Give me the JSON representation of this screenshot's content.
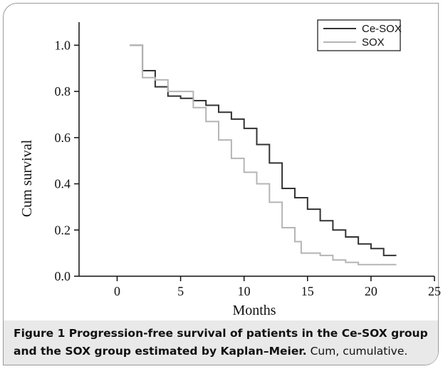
{
  "chart_data": {
    "type": "line",
    "step": true,
    "title": "",
    "xlabel": "Months",
    "ylabel": "Cum survival",
    "xlim": [
      -3,
      25
    ],
    "ylim": [
      0.0,
      1.1
    ],
    "xticks": [
      0,
      5,
      10,
      15,
      20,
      25
    ],
    "yticks": [
      0.0,
      0.2,
      0.4,
      0.6,
      0.8,
      1.0
    ],
    "xtick_labels": [
      "0",
      "5",
      "10",
      "15",
      "20",
      "25"
    ],
    "ytick_labels": [
      "0.0",
      "0.2",
      "0.4",
      "0.6",
      "0.8",
      "1.0"
    ],
    "grid": false,
    "legend_position": "top-right",
    "series": [
      {
        "name": "Ce-SOX",
        "color": "#333333",
        "points": [
          [
            1,
            1.0
          ],
          [
            2,
            1.0
          ],
          [
            2,
            0.89
          ],
          [
            3,
            0.89
          ],
          [
            3,
            0.82
          ],
          [
            4,
            0.82
          ],
          [
            4,
            0.78
          ],
          [
            5,
            0.78
          ],
          [
            5,
            0.77
          ],
          [
            6,
            0.77
          ],
          [
            6,
            0.76
          ],
          [
            7,
            0.76
          ],
          [
            7,
            0.74
          ],
          [
            8,
            0.74
          ],
          [
            8,
            0.71
          ],
          [
            9,
            0.71
          ],
          [
            9,
            0.68
          ],
          [
            10,
            0.68
          ],
          [
            10,
            0.64
          ],
          [
            11,
            0.64
          ],
          [
            11,
            0.57
          ],
          [
            12,
            0.57
          ],
          [
            12,
            0.49
          ],
          [
            13,
            0.49
          ],
          [
            13,
            0.38
          ],
          [
            14,
            0.38
          ],
          [
            14,
            0.34
          ],
          [
            15,
            0.34
          ],
          [
            15,
            0.29
          ],
          [
            16,
            0.29
          ],
          [
            16,
            0.24
          ],
          [
            17,
            0.24
          ],
          [
            17,
            0.2
          ],
          [
            18,
            0.2
          ],
          [
            18,
            0.17
          ],
          [
            19,
            0.17
          ],
          [
            19,
            0.14
          ],
          [
            20,
            0.14
          ],
          [
            20,
            0.12
          ],
          [
            21,
            0.12
          ],
          [
            21,
            0.09
          ],
          [
            22,
            0.09
          ]
        ]
      },
      {
        "name": "SOX",
        "color": "#b5b5b5",
        "points": [
          [
            1,
            1.0
          ],
          [
            2,
            1.0
          ],
          [
            2,
            0.86
          ],
          [
            3,
            0.86
          ],
          [
            3,
            0.85
          ],
          [
            4,
            0.85
          ],
          [
            4,
            0.8
          ],
          [
            6,
            0.8
          ],
          [
            6,
            0.73
          ],
          [
            7,
            0.73
          ],
          [
            7,
            0.67
          ],
          [
            8,
            0.67
          ],
          [
            8,
            0.59
          ],
          [
            9,
            0.59
          ],
          [
            9,
            0.51
          ],
          [
            10,
            0.51
          ],
          [
            10,
            0.45
          ],
          [
            11,
            0.45
          ],
          [
            11,
            0.4
          ],
          [
            12,
            0.4
          ],
          [
            12,
            0.32
          ],
          [
            13,
            0.32
          ],
          [
            13,
            0.21
          ],
          [
            14,
            0.21
          ],
          [
            14,
            0.15
          ],
          [
            14.5,
            0.15
          ],
          [
            14.5,
            0.1
          ],
          [
            16,
            0.1
          ],
          [
            16,
            0.09
          ],
          [
            17,
            0.09
          ],
          [
            17,
            0.07
          ],
          [
            18,
            0.07
          ],
          [
            18,
            0.06
          ],
          [
            19,
            0.06
          ],
          [
            19,
            0.05
          ],
          [
            22,
            0.05
          ]
        ]
      }
    ]
  },
  "caption": {
    "bold": "Figure 1 Progression-free survival of patients in the Ce-SOX group and the SOX group estimated by Kaplan–Meier.",
    "rest": " Cum, cumulative."
  }
}
